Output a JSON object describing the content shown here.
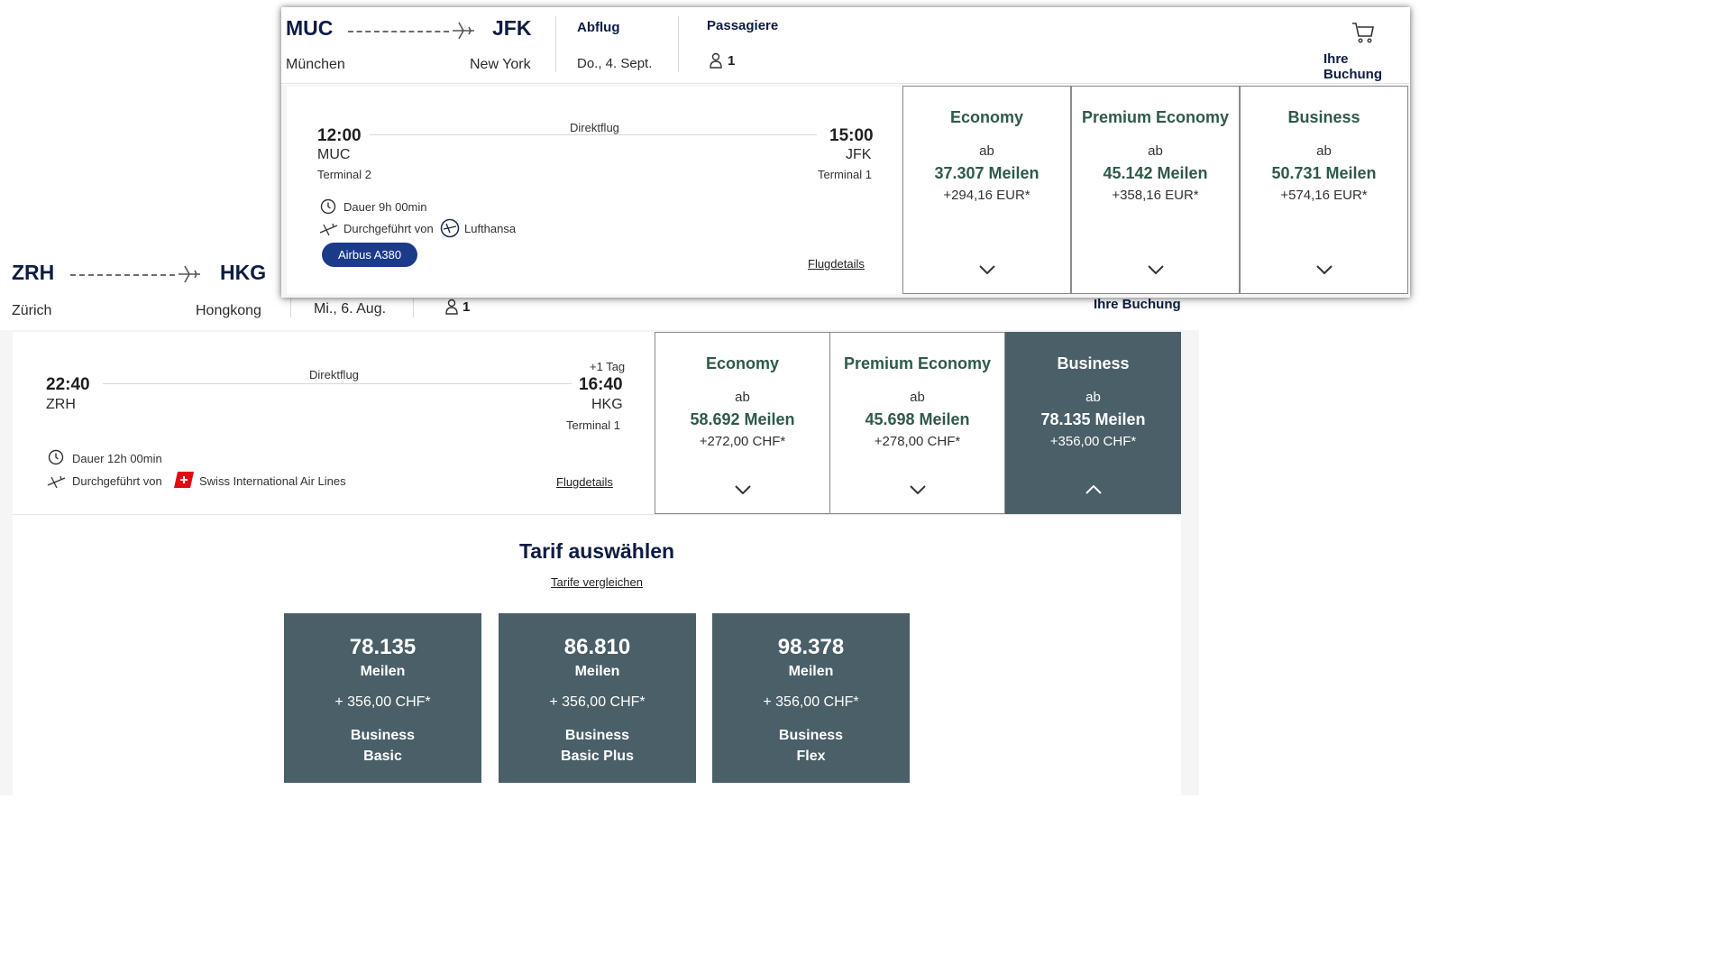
{
  "back": {
    "origin_code": "ZRH",
    "origin_city": "Zürich",
    "dest_code": "HKG",
    "dest_city": "Hongkong",
    "date": "Mi., 6. Aug.",
    "passengers": "1",
    "booking_label": "Ihre Buchung",
    "flight": {
      "type": "Direktflug",
      "dep_time": "22:40",
      "dep_airport": "ZRH",
      "arr_day_offset": "+1 Tag",
      "arr_time": "16:40",
      "arr_airport": "HKG",
      "arr_terminal": "Terminal 1",
      "duration": "Dauer 12h 00min",
      "operated_by_label": "Durchgeführt von",
      "airline": "Swiss International Air Lines",
      "details_link": "Flugdetails"
    },
    "fares": [
      {
        "name": "Economy",
        "ab": "ab",
        "miles": "58.692 Meilen",
        "price": "+272,00 CHF*",
        "selected": false
      },
      {
        "name": "Premium Economy",
        "ab": "ab",
        "miles": "45.698 Meilen",
        "price": "+278,00 CHF*",
        "selected": false
      },
      {
        "name": "Business",
        "ab": "ab",
        "miles": "78.135 Meilen",
        "price": "+356,00 CHF*",
        "selected": true
      }
    ],
    "tarif": {
      "title": "Tarif auswählen",
      "compare_link": "Tarife vergleichen",
      "cards": [
        {
          "miles": "78.135",
          "unit": "Meilen",
          "price": "+ 356,00 CHF*",
          "name1": "Business",
          "name2": "Basic"
        },
        {
          "miles": "86.810",
          "unit": "Meilen",
          "price": "+ 356,00 CHF*",
          "name1": "Business",
          "name2": "Basic Plus"
        },
        {
          "miles": "98.378",
          "unit": "Meilen",
          "price": "+ 356,00 CHF*",
          "name1": "Business",
          "name2": "Flex"
        }
      ]
    }
  },
  "popup": {
    "origin_code": "MUC",
    "origin_city": "München",
    "dest_code": "JFK",
    "dest_city": "New York",
    "departure_label": "Abflug",
    "date": "Do., 4. Sept.",
    "passengers_label": "Passagiere",
    "passengers": "1",
    "booking_label": "Ihre Buchung",
    "flight": {
      "type": "Direktflug",
      "dep_time": "12:00",
      "dep_airport": "MUC",
      "dep_terminal": "Terminal 2",
      "arr_time": "15:00",
      "arr_airport": "JFK",
      "arr_terminal": "Terminal 1",
      "duration": "Dauer 9h 00min",
      "operated_by_label": "Durchgeführt von",
      "airline": "Lufthansa",
      "aircraft": "Airbus A380",
      "details_link": "Flugdetails"
    },
    "fares": [
      {
        "name": "Economy",
        "ab": "ab",
        "miles": "37.307 Meilen",
        "price": "+294,16 EUR*"
      },
      {
        "name": "Premium Economy",
        "ab": "ab",
        "miles": "45.142 Meilen",
        "price": "+358,16 EUR*"
      },
      {
        "name": "Business",
        "ab": "ab",
        "miles": "50.731 Meilen",
        "price": "+574,16 EUR*"
      }
    ]
  },
  "colors": {
    "navy": "#0c1c42",
    "fare_green": "#2f5a48",
    "selected_slate": "#4a5f68",
    "badge_blue": "#1b3b8a",
    "swiss_red": "#e30613"
  }
}
